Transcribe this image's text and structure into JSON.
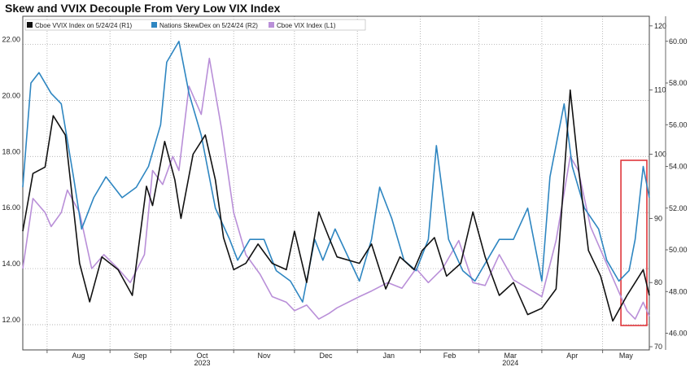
{
  "chart_data": {
    "type": "line",
    "title": "Skew and VVIX Decouple From Very Low VIX Index",
    "x_labels": [
      "Aug",
      "Sep",
      "Oct",
      "Nov",
      "Dec",
      "Jan",
      "Feb",
      "Mar",
      "Apr",
      "May"
    ],
    "year_labels": [
      {
        "month": "Oct",
        "year": "2023"
      },
      {
        "month": "Mar",
        "year": "2024"
      }
    ],
    "x_range": [
      "2023-07-20",
      "2024-05-24"
    ],
    "left_axis": {
      "ticks": [
        "12.00",
        "14.00",
        "16.00",
        "18.00",
        "20.00",
        "22.00"
      ],
      "ylim": [
        11.1,
        23.0
      ]
    },
    "r1_axis": {
      "ticks": [
        "70",
        "80",
        "90",
        "100",
        "110",
        "120"
      ],
      "ylim": [
        69.5,
        121.5
      ]
    },
    "r2_axis": {
      "ticks": [
        "46.00",
        "48.00",
        "50.00",
        "52.00",
        "54.00",
        "56.00",
        "58.00",
        "60.00"
      ],
      "ylim": [
        45.2,
        61.2
      ]
    },
    "legend_position": "top-left",
    "grid": true,
    "highlight": {
      "x_range": [
        "2024-05-10",
        "2024-05-24"
      ],
      "color": "#e0363b"
    },
    "series": [
      {
        "name": "Cboe VVIX Index on 5/24/24 (R1)",
        "axis": "R1",
        "color": "#111111",
        "dates": [
          "2023-07-20",
          "2023-07-25",
          "2023-07-31",
          "2023-08-04",
          "2023-08-10",
          "2023-08-17",
          "2023-08-22",
          "2023-08-28",
          "2023-09-05",
          "2023-09-12",
          "2023-09-19",
          "2023-09-22",
          "2023-09-28",
          "2023-10-03",
          "2023-10-06",
          "2023-10-12",
          "2023-10-18",
          "2023-10-23",
          "2023-10-27",
          "2023-11-01",
          "2023-11-07",
          "2023-11-13",
          "2023-11-20",
          "2023-11-27",
          "2023-12-01",
          "2023-12-07",
          "2023-12-13",
          "2023-12-18",
          "2023-12-22",
          "2024-01-02",
          "2024-01-08",
          "2024-01-15",
          "2024-01-22",
          "2024-01-29",
          "2024-02-02",
          "2024-02-08",
          "2024-02-14",
          "2024-02-21",
          "2024-02-27",
          "2024-03-04",
          "2024-03-11",
          "2024-03-18",
          "2024-03-25",
          "2024-04-01",
          "2024-04-08",
          "2024-04-15",
          "2024-04-19",
          "2024-04-24",
          "2024-04-30",
          "2024-05-06",
          "2024-05-13",
          "2024-05-17",
          "2024-05-21",
          "2024-05-24"
        ],
        "values": [
          88,
          97,
          98,
          106,
          103,
          83,
          77,
          84,
          82,
          78,
          95,
          92,
          102,
          96,
          90,
          100,
          103,
          96,
          87,
          82,
          83,
          86,
          83,
          82,
          88,
          80,
          91,
          87,
          84,
          83,
          86,
          79,
          84,
          82,
          85,
          87,
          81,
          83,
          91,
          84,
          78,
          80,
          75,
          76,
          79,
          110,
          98,
          85,
          81,
          74,
          78,
          80,
          82,
          78
        ]
      },
      {
        "name": "Nations SkewDex on 5/24/24 (R2)",
        "axis": "R2",
        "color": "#2e86c1",
        "dates": [
          "2023-07-20",
          "2023-07-24",
          "2023-07-28",
          "2023-08-03",
          "2023-08-08",
          "2023-08-14",
          "2023-08-18",
          "2023-08-24",
          "2023-08-30",
          "2023-09-07",
          "2023-09-14",
          "2023-09-20",
          "2023-09-26",
          "2023-09-29",
          "2023-10-05",
          "2023-10-10",
          "2023-10-16",
          "2023-10-23",
          "2023-10-30",
          "2023-11-03",
          "2023-11-09",
          "2023-11-16",
          "2023-11-22",
          "2023-11-29",
          "2023-12-05",
          "2023-12-11",
          "2023-12-15",
          "2023-12-21",
          "2024-01-02",
          "2024-01-08",
          "2024-01-12",
          "2024-01-18",
          "2024-01-24",
          "2024-01-30",
          "2024-02-05",
          "2024-02-09",
          "2024-02-15",
          "2024-02-22",
          "2024-02-28",
          "2024-03-05",
          "2024-03-11",
          "2024-03-18",
          "2024-03-25",
          "2024-04-01",
          "2024-04-05",
          "2024-04-12",
          "2024-04-16",
          "2024-04-22",
          "2024-04-29",
          "2024-05-03",
          "2024-05-09",
          "2024-05-14",
          "2024-05-17",
          "2024-05-21",
          "2024-05-24"
        ],
        "values": [
          53.0,
          58.0,
          58.5,
          57.5,
          57.0,
          53.5,
          51.0,
          52.5,
          53.5,
          52.5,
          53.0,
          54.0,
          56.0,
          59.0,
          60.0,
          57.5,
          55.5,
          52.0,
          50.5,
          49.5,
          50.5,
          50.5,
          49.0,
          48.5,
          47.5,
          50.5,
          49.5,
          51.0,
          48.5,
          50.5,
          53.0,
          51.5,
          49.5,
          49.0,
          50.5,
          55.0,
          50.5,
          49.0,
          48.5,
          49.5,
          50.5,
          50.5,
          52.0,
          48.5,
          53.5,
          57.0,
          54.0,
          52.0,
          51.0,
          49.5,
          48.5,
          49.0,
          50.5,
          54.0,
          52.5
        ]
      },
      {
        "name": "Cboe VIX Index (L1)",
        "axis": "L1",
        "color": "#b98fd8",
        "dates": [
          "2023-07-20",
          "2023-07-25",
          "2023-07-31",
          "2023-08-03",
          "2023-08-08",
          "2023-08-11",
          "2023-08-17",
          "2023-08-23",
          "2023-08-29",
          "2023-09-05",
          "2023-09-11",
          "2023-09-18",
          "2023-09-22",
          "2023-09-27",
          "2023-10-02",
          "2023-10-05",
          "2023-10-10",
          "2023-10-16",
          "2023-10-20",
          "2023-10-26",
          "2023-11-01",
          "2023-11-07",
          "2023-11-14",
          "2023-11-20",
          "2023-11-27",
          "2023-12-01",
          "2023-12-07",
          "2023-12-13",
          "2023-12-18",
          "2023-12-22",
          "2024-01-02",
          "2024-01-08",
          "2024-01-16",
          "2024-01-23",
          "2024-01-30",
          "2024-02-05",
          "2024-02-12",
          "2024-02-20",
          "2024-02-27",
          "2024-03-04",
          "2024-03-11",
          "2024-03-18",
          "2024-03-25",
          "2024-04-01",
          "2024-04-08",
          "2024-04-15",
          "2024-04-19",
          "2024-04-25",
          "2024-05-01",
          "2024-05-07",
          "2024-05-13",
          "2024-05-17",
          "2024-05-21",
          "2024-05-24"
        ],
        "values": [
          14.0,
          16.5,
          16.0,
          15.5,
          16.0,
          16.8,
          16.0,
          14.0,
          14.5,
          14.0,
          13.5,
          14.5,
          17.5,
          17.0,
          18.0,
          17.5,
          20.5,
          19.5,
          21.5,
          19.0,
          16.0,
          14.5,
          13.8,
          13.0,
          12.8,
          12.5,
          12.7,
          12.2,
          12.4,
          12.6,
          13.0,
          13.2,
          13.5,
          13.3,
          14.0,
          13.5,
          14.0,
          15.0,
          13.5,
          13.4,
          14.5,
          13.6,
          13.3,
          13.0,
          15.0,
          18.0,
          17.5,
          15.5,
          14.5,
          13.5,
          12.5,
          12.2,
          12.8,
          12.3
        ]
      }
    ]
  }
}
